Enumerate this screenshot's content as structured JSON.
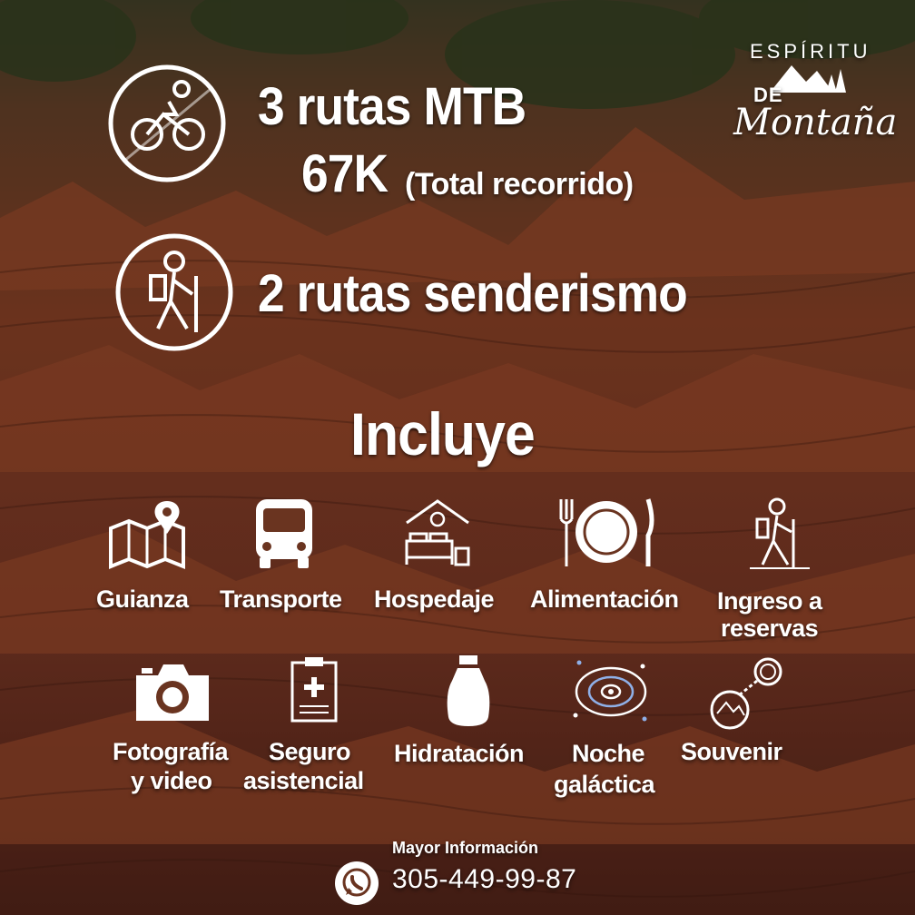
{
  "colors": {
    "terrain": "#6a3420",
    "text": "#ffffff"
  },
  "brand": {
    "line1": "ESPÍRITU",
    "line2": "DE",
    "line3": "Montaña"
  },
  "stats": {
    "mtb": "3 rutas MTB",
    "distance_value": "67K",
    "distance_note": "(Total recorrido)",
    "hiking": "2 rutas senderismo"
  },
  "includes_title": "Incluye",
  "includes": [
    {
      "label": "Guianza",
      "icon": "map-pin-icon"
    },
    {
      "label": "Transporte",
      "icon": "bus-icon"
    },
    {
      "label": "Hospedaje",
      "icon": "bed-icon"
    },
    {
      "label": "Alimentación",
      "icon": "plate-cutlery-icon"
    },
    {
      "label_1": "Ingreso a",
      "label_2": "reservas",
      "icon": "hiker-icon"
    },
    {
      "label_1": "Fotografía",
      "label_2": "y video",
      "icon": "camera-icon"
    },
    {
      "label_1": "Seguro",
      "label_2": "asistencial",
      "icon": "medical-clipboard-icon"
    },
    {
      "label": "Hidratación",
      "icon": "canteen-icon"
    },
    {
      "label_1": "Noche",
      "label_2": "galáctica",
      "icon": "galaxy-icon"
    },
    {
      "label": "Souvenir",
      "icon": "keychain-icon"
    }
  ],
  "contact": {
    "label": "Mayor Información",
    "phone": "305-449-99-87",
    "icon": "whatsapp-icon"
  }
}
